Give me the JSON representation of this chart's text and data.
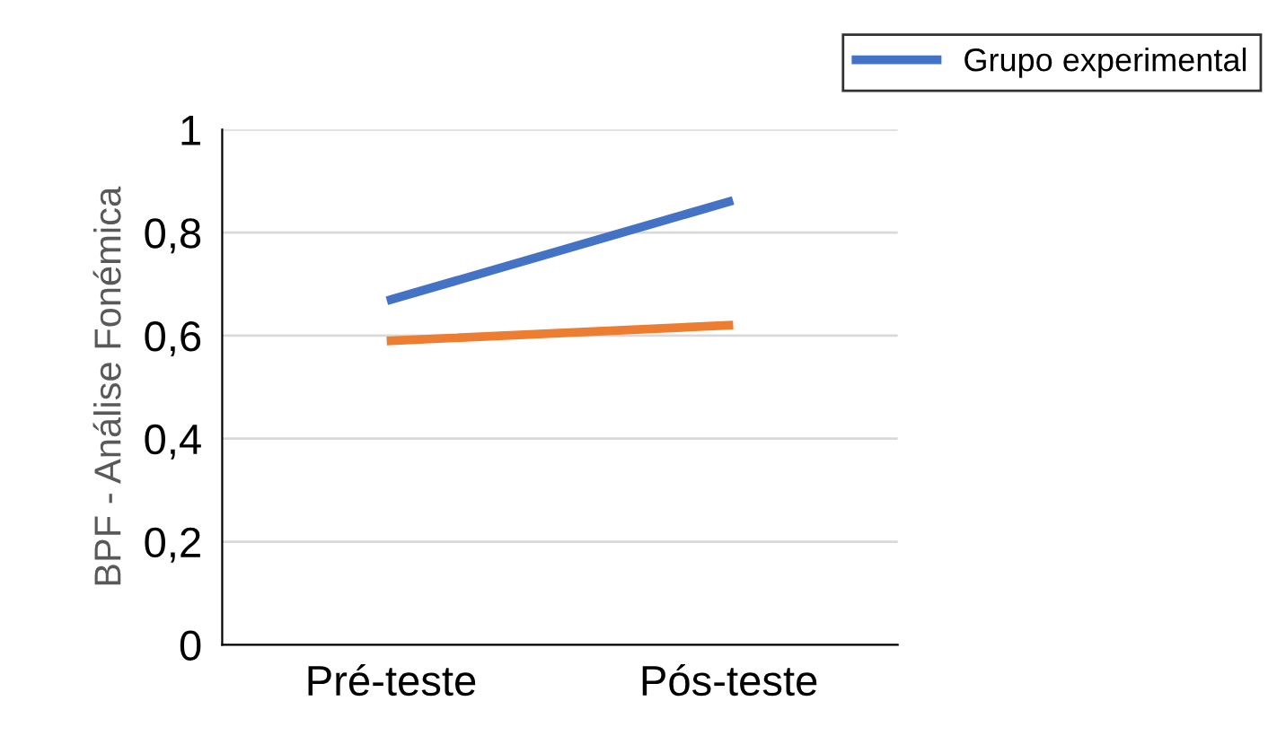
{
  "chart_data": {
    "type": "line",
    "ylabel": "BPF - Análise Fonémica",
    "categories": [
      "Pré-teste",
      "Pós-teste"
    ],
    "series": [
      {
        "name": "Grupo experimental",
        "color": "#4472c4",
        "values": [
          0.67,
          0.86
        ]
      },
      {
        "color": "#ed7d31",
        "values": [
          0.59,
          0.62
        ]
      }
    ],
    "ylim": [
      0,
      1
    ],
    "yticks": [
      0,
      {
        "value": 0.2,
        "label": "0,2"
      },
      {
        "value": 0.4,
        "label": "0,4"
      },
      {
        "value": 0.6,
        "label": "0,6"
      },
      {
        "value": 0.8,
        "label": "0,8"
      },
      1
    ],
    "grid": "y",
    "legend": "top right",
    "marker": "none",
    "line_style": "solid"
  }
}
